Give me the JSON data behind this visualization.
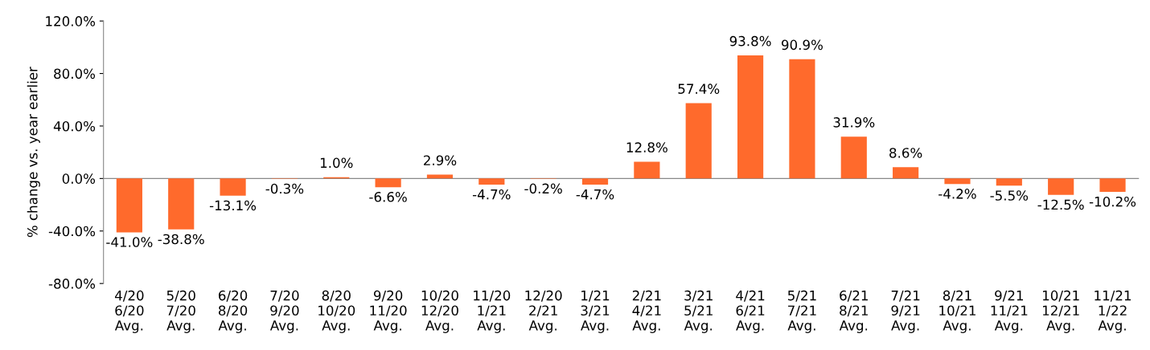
{
  "chart_data": {
    "type": "bar",
    "ylabel": "% change vs. year earlier",
    "categories": [
      "4/20\n6/20\nAvg.",
      "5/20\n7/20\nAvg.",
      "6/20\n8/20\nAvg.",
      "7/20\n9/20\nAvg.",
      "8/20\n10/20\nAvg.",
      "9/20\n11/20\nAvg.",
      "10/20\n12/20\nAvg.",
      "11/20\n1/21\nAvg.",
      "12/20\n2/21\nAvg.",
      "1/21\n3/21\nAvg.",
      "2/21\n4/21\nAvg.",
      "3/21\n5/21\nAvg.",
      "4/21\n6/21\nAvg.",
      "5/21\n7/21\nAvg.",
      "6/21\n8/21\nAvg.",
      "7/21\n9/21\nAvg.",
      "8/21\n10/21\nAvg.",
      "9/21\n11/21\nAvg.",
      "10/21\n12/21\nAvg.",
      "11/21\n1/22\nAvg."
    ],
    "values": [
      -41.0,
      -38.8,
      -13.1,
      -0.3,
      1.0,
      -6.6,
      2.9,
      -4.7,
      -0.2,
      -4.7,
      12.8,
      57.4,
      93.8,
      90.9,
      31.9,
      8.6,
      -4.2,
      -5.5,
      -12.5,
      -10.2
    ],
    "value_labels": [
      "-41.0%",
      "-38.8%",
      "-13.1%",
      "-0.3%",
      "1.0%",
      "-6.6%",
      "2.9%",
      "-4.7%",
      "-0.2%",
      "-4.7%",
      "12.8%",
      "57.4%",
      "93.8%",
      "90.9%",
      "31.9%",
      "8.6%",
      "-4.2%",
      "-5.5%",
      "-12.5%",
      "-10.2%"
    ],
    "color": "#ff6a2c",
    "ylim": [
      -80,
      120
    ],
    "yticks": [
      {
        "value": -80,
        "label": "-80.0%"
      },
      {
        "value": -40,
        "label": "-40.0%"
      },
      {
        "value": 0,
        "label": "0.0%"
      },
      {
        "value": 40,
        "label": "40.0%"
      },
      {
        "value": 80,
        "label": "80.0%"
      },
      {
        "value": 120,
        "label": "120.0%"
      }
    ],
    "legend": false
  }
}
